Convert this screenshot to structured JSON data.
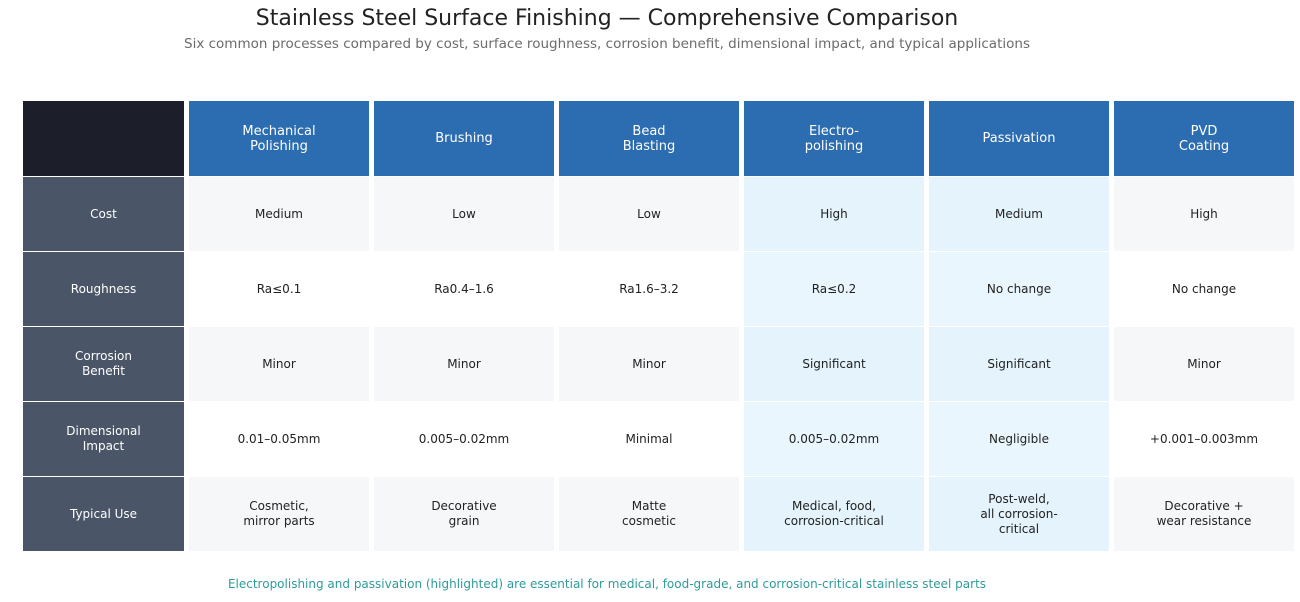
{
  "chart_data": {
    "type": "table",
    "title": "Stainless Steel Surface Finishing — Comprehensive Comparison",
    "subtitle": "Six common processes compared by cost, surface roughness, corrosion benefit, dimensional impact, and typical applications",
    "columns": [
      "Mechanical\nPolishing",
      "Brushing",
      "Bead\nBlasting",
      "Electro-\npolishing",
      "Passivation",
      "PVD\nCoating"
    ],
    "highlighted_columns": [
      3,
      4
    ],
    "rows": [
      {
        "label": "Cost",
        "values": [
          "Medium",
          "Low",
          "Low",
          "High",
          "Medium",
          "High"
        ]
      },
      {
        "label": "Roughness",
        "values": [
          "Ra≤0.1",
          "Ra0.4–1.6",
          "Ra1.6–3.2",
          "Ra≤0.2",
          "No change",
          "No change"
        ]
      },
      {
        "label": "Corrosion\nBenefit",
        "values": [
          "Minor",
          "Minor",
          "Minor",
          "Significant",
          "Significant",
          "Minor"
        ]
      },
      {
        "label": "Dimensional\nImpact",
        "values": [
          "0.01–0.05mm",
          "0.005–0.02mm",
          "Minimal",
          "0.005–0.02mm",
          "Negligible",
          "+0.001–0.003mm"
        ]
      },
      {
        "label": "Typical Use",
        "values": [
          "Cosmetic,\nmirror parts",
          "Decorative\ngrain",
          "Matte\ncosmetic",
          "Medical, food,\ncorrosion-critical",
          "Post-weld,\nall corrosion-\ncritical",
          "Decorative +\nwear resistance"
        ]
      }
    ],
    "footnote": "Electropolishing and passivation (highlighted) are essential for medical, food-grade, and corrosion-critical stainless steel parts"
  },
  "colors": {
    "header_bg": "#2c6cb0",
    "row_label_bg": "#4a5567",
    "corner_bg": "#1c1f29",
    "highlight_bg": "#e4f3fc",
    "footnote_text": "#2e9b9b"
  }
}
